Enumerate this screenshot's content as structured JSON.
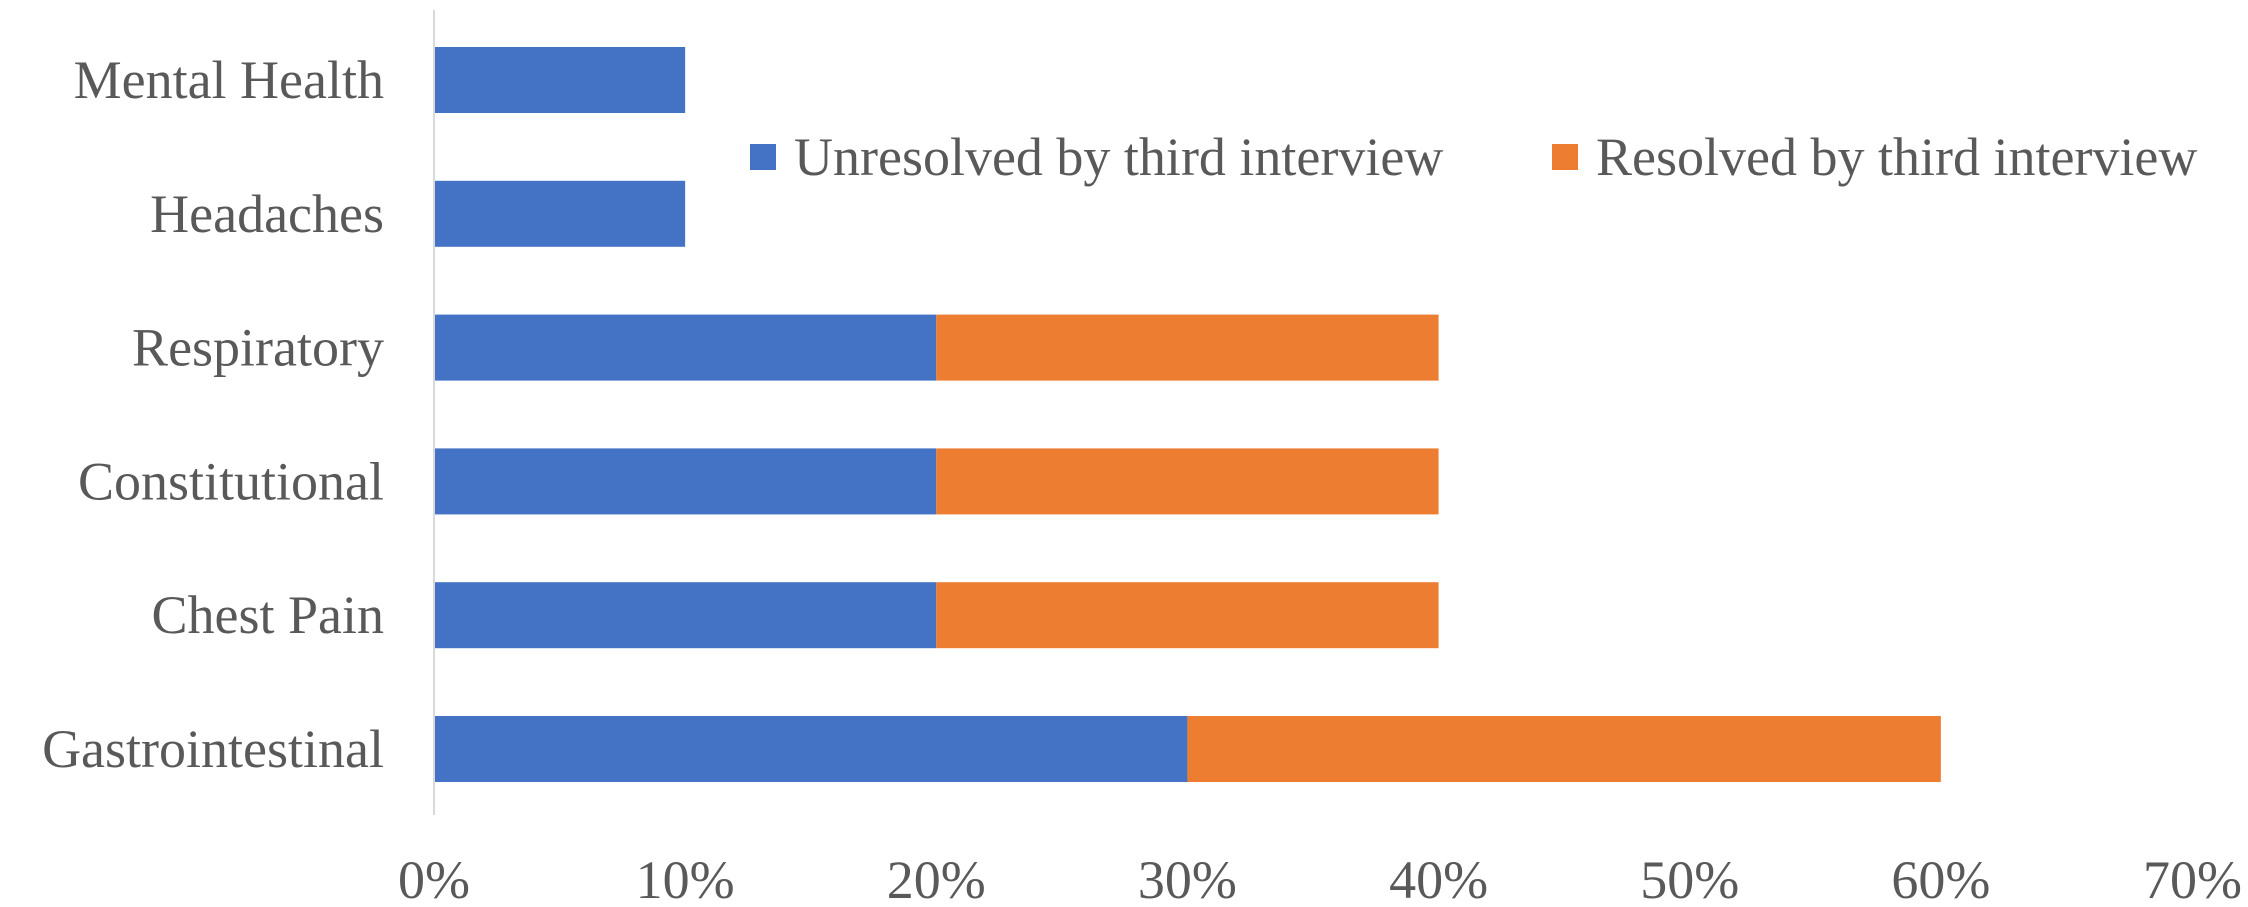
{
  "chart_data": {
    "type": "bar",
    "orientation": "horizontal",
    "stacked": true,
    "categories": [
      "Mental Health",
      "Headaches",
      "Respiratory",
      "Constitutional",
      "Chest Pain",
      "Gastrointestinal"
    ],
    "series": [
      {
        "name": "Unresolved by third interview",
        "values": [
          10,
          10,
          20,
          20,
          20,
          30
        ]
      },
      {
        "name": "Resolved by third interview",
        "values": [
          0,
          0,
          20,
          20,
          20,
          30
        ]
      }
    ],
    "xlim": [
      0,
      70
    ],
    "x_ticks": [
      0,
      10,
      20,
      30,
      40,
      50,
      60,
      70
    ],
    "x_tick_labels": [
      "0%",
      "10%",
      "20%",
      "30%",
      "40%",
      "50%",
      "60%",
      "70%"
    ],
    "title": "",
    "xlabel": "",
    "ylabel": "",
    "grid": false,
    "legend_position": "top-right",
    "colors": [
      "#4472C4",
      "#ED7D31"
    ]
  }
}
